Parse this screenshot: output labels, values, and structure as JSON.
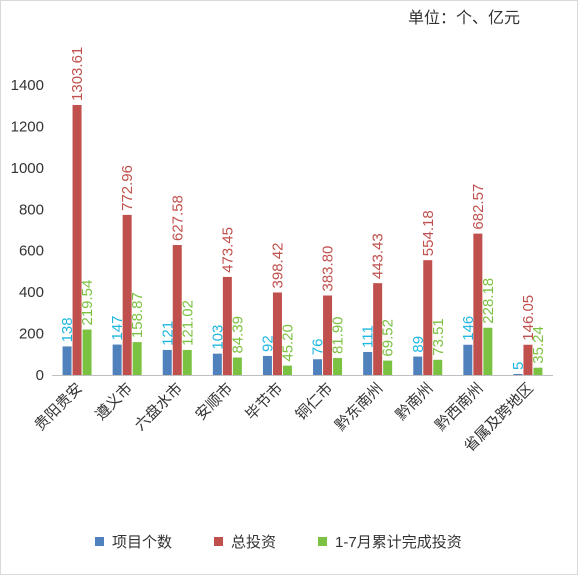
{
  "unit_note": "单位：个、亿元",
  "chart_data": {
    "type": "bar",
    "title": "",
    "xlabel": "",
    "ylabel": "",
    "ylim": [
      0,
      1400
    ],
    "yticks": [
      0,
      200,
      400,
      600,
      800,
      1000,
      1200,
      1400
    ],
    "grid": false,
    "legend_position": "bottom",
    "categories": [
      "贵阳贵安",
      "遵义市",
      "六盘水市",
      "安顺市",
      "毕节市",
      "铜仁市",
      "黔东南州",
      "黔南州",
      "黔西南州",
      "省属及跨地区"
    ],
    "series": [
      {
        "name": "项目个数",
        "color": "#4f81bd",
        "label_color": "#1fb7e0",
        "values": [
          138,
          147,
          121,
          103,
          92,
          76,
          111,
          89,
          146,
          5
        ],
        "labels": [
          "138",
          "147",
          "121",
          "103",
          "92",
          "76",
          "111",
          "89",
          "146",
          "5"
        ]
      },
      {
        "name": "总投资",
        "color": "#c0504d",
        "label_color": "#c0504d",
        "values": [
          1303.61,
          772.96,
          627.58,
          473.45,
          398.42,
          383.8,
          443.43,
          554.18,
          682.57,
          146.05
        ],
        "labels": [
          "1303.61",
          "772.96",
          "627.58",
          "473.45",
          "398.42",
          "383.80",
          "443.43",
          "554.18",
          "682.57",
          "146.05"
        ]
      },
      {
        "name": "1-7月累计完成投资",
        "color": "#7bc242",
        "label_color": "#7bc242",
        "values": [
          219.54,
          158.87,
          121.02,
          84.39,
          45.2,
          81.9,
          69.52,
          73.51,
          228.18,
          35.24
        ],
        "labels": [
          "219.54",
          "158.87",
          "121.02",
          "84.39",
          "45.20",
          "81.90",
          "69.52",
          "73.51",
          "228.18",
          "35.24"
        ]
      }
    ]
  }
}
